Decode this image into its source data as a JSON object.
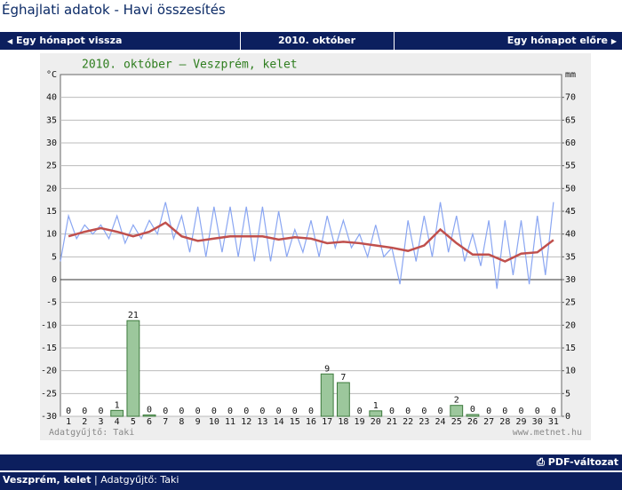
{
  "header": {
    "title": "Éghajlati adatok - Havi összesítés"
  },
  "nav": {
    "prev": "Egy hónapot vissza",
    "current": "2010. október",
    "next": "Egy hónapot előre"
  },
  "chart_data": {
    "type": "combo",
    "title": "2010. október – Veszprém, kelet",
    "ylabel": "°C",
    "y2label": "mm",
    "categories": [
      1,
      2,
      3,
      4,
      5,
      6,
      7,
      8,
      9,
      10,
      11,
      12,
      13,
      14,
      15,
      16,
      17,
      18,
      19,
      20,
      21,
      22,
      23,
      24,
      25,
      26,
      27,
      28,
      29,
      30,
      31
    ],
    "ylim": [
      -30,
      45
    ],
    "yticks": [
      -30,
      -25,
      -20,
      -15,
      -10,
      -5,
      0,
      5,
      10,
      15,
      20,
      25,
      30,
      35,
      40
    ],
    "y2lim": [
      0,
      75
    ],
    "y2ticks": [
      0,
      5,
      10,
      15,
      20,
      25,
      30,
      35,
      40,
      45,
      50,
      55,
      60,
      65,
      70
    ],
    "grid": true,
    "series": [
      {
        "type": "bar",
        "axis": "y2",
        "color": "#9cc79c",
        "values": [
          0,
          0,
          0,
          1.3,
          21,
          0.3,
          0,
          0,
          0,
          0,
          0,
          0,
          0,
          0,
          0,
          0,
          9.3,
          7.4,
          0,
          1.2,
          0,
          0,
          0,
          0,
          2.4,
          0.4,
          0,
          0,
          0,
          0,
          0
        ],
        "value_labels": [
          "0",
          "0",
          "0",
          "1",
          "21",
          "0",
          "0",
          "0",
          "0",
          "0",
          "0",
          "0",
          "0",
          "0",
          "0",
          "0",
          "9",
          "7",
          "0",
          "1",
          "0",
          "0",
          "0",
          "0",
          "2",
          "0",
          "0",
          "0",
          "0",
          "0",
          "0"
        ]
      },
      {
        "type": "line",
        "color": "#8aa6f2",
        "x": [
          0.5,
          1,
          1.5,
          2,
          2.5,
          3,
          3.5,
          4,
          4.5,
          5,
          5.5,
          6,
          6.5,
          7,
          7.5,
          8,
          8.5,
          9,
          9.5,
          10,
          10.5,
          11,
          11.5,
          12,
          12.5,
          13,
          13.5,
          14,
          14.5,
          15,
          15.5,
          16,
          16.5,
          17,
          17.5,
          18,
          18.5,
          19,
          19.5,
          20,
          20.5,
          21,
          21.5,
          22,
          22.5,
          23,
          23.5,
          24,
          24.5,
          25,
          25.5,
          26,
          26.5,
          27,
          27.5,
          28,
          28.5,
          29,
          29.5,
          30,
          30.5,
          31
        ],
        "values": [
          4,
          14,
          9,
          12,
          10,
          12,
          9,
          14,
          8,
          12,
          9,
          13,
          10,
          17,
          9,
          14,
          6,
          16,
          5,
          16,
          6,
          16,
          5,
          16,
          4,
          16,
          4,
          15,
          5,
          11,
          6,
          13,
          5,
          14,
          7,
          13,
          7,
          10,
          5,
          12,
          5,
          7,
          -1,
          13,
          4,
          14,
          5,
          17,
          6,
          14,
          4,
          10,
          3,
          13,
          -2,
          13,
          1,
          13,
          -1,
          14,
          1,
          17
        ]
      },
      {
        "type": "line",
        "color": "#c0504d",
        "values": [
          9.5,
          10.5,
          11.3,
          10.5,
          9.5,
          10.5,
          12.5,
          9.5,
          8.5,
          9,
          9.5,
          9.5,
          9.5,
          8.8,
          9.3,
          9,
          8,
          8.3,
          8,
          7.5,
          7,
          6.3,
          7.5,
          11,
          8,
          5.5,
          5.5,
          4,
          5.7,
          6,
          8.7
        ]
      }
    ],
    "annotations": [
      "Adatgyűjtő: Taki",
      "www.metnet.hu"
    ]
  },
  "footer": {
    "pdf": "PDF-változat",
    "station": "Veszprém, kelet",
    "separator": "|",
    "collector": "Adatgyűjtő: Taki"
  }
}
